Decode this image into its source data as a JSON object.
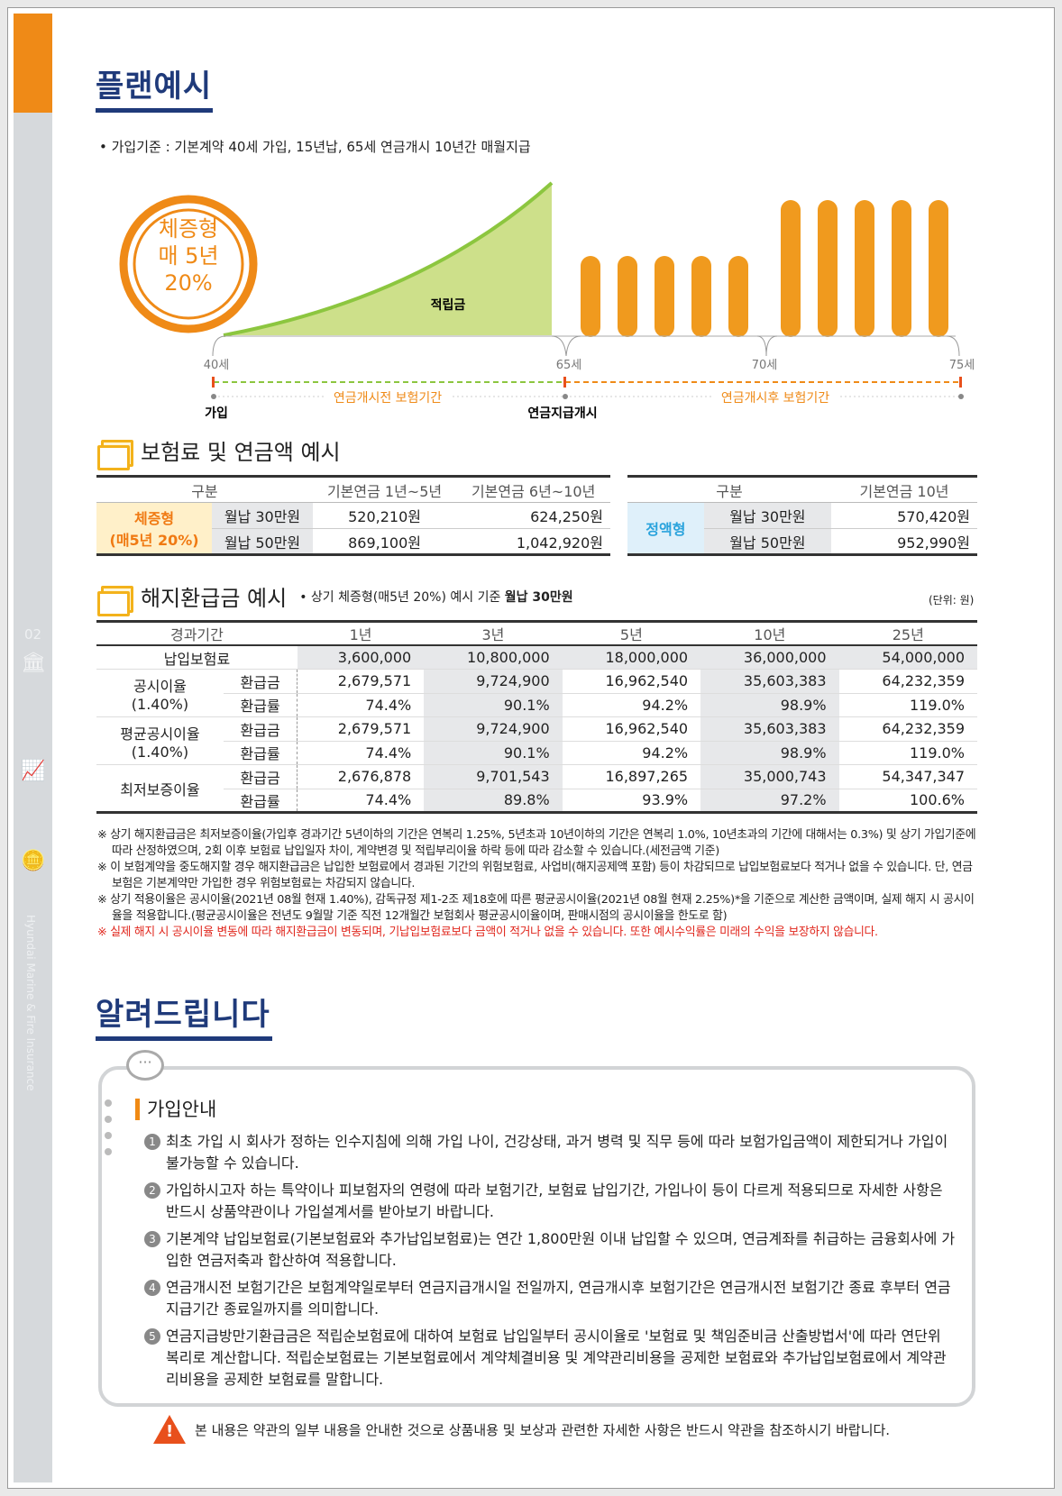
{
  "sidebar": {
    "page_number": "02",
    "vertical_text": "Hyundai Marine & Fire Insurance",
    "icons": [
      "bank-icon",
      "presentation-chart-icon",
      "coins-icon"
    ]
  },
  "plan": {
    "title": "플랜예시",
    "criteria": "• 가입기준 : 기본계약 40세 가입, 15년납, 65세 연금개시 10년간 매월지급",
    "badge": [
      "체증형",
      "매 5년",
      "20%"
    ],
    "accumulation_label": "적립금",
    "ages": [
      "40세",
      "65세",
      "70세",
      "75세"
    ],
    "period_before": "연금개시전 보험기간",
    "period_after": "연금개시후 보험기간",
    "milestones": [
      "가입",
      "연금지급개시"
    ],
    "colors": {
      "orange": "#ef8a17",
      "green": "#cde08a",
      "navy": "#1f3a7a"
    }
  },
  "premium": {
    "title": "보험료 및 연금액 예시",
    "left": {
      "headers": [
        "구분",
        "기본연금 1년~5년",
        "기본연금 6년~10년"
      ],
      "type": "체증형",
      "type2": "(매5년 20%)",
      "rows": [
        [
          "월납 30만원",
          "520,210원",
          "624,250원"
        ],
        [
          "월납 50만원",
          "869,100원",
          "1,042,920원"
        ]
      ]
    },
    "right": {
      "headers": [
        "구분",
        "기본연금 10년"
      ],
      "type": "정액형",
      "rows": [
        [
          "월납 30만원",
          "570,420원"
        ],
        [
          "월납 50만원",
          "952,990원"
        ]
      ]
    }
  },
  "refund": {
    "title": "해지환급금 예시",
    "subtitle": "• 상기 체증형(매5년 20%) 예시 기준 ",
    "subtitle_bold": "월납 30만원",
    "unit": "(단위: 원)",
    "headers": [
      "경과기간",
      "1년",
      "3년",
      "5년",
      "10년",
      "25년"
    ],
    "paid": {
      "label": "납입보험료",
      "values": [
        "3,600,000",
        "10,800,000",
        "18,000,000",
        "36,000,000",
        "54,000,000"
      ]
    },
    "groups": [
      {
        "label": "공시이율",
        "rate": "(1.40%)",
        "refund_label": "환급금",
        "refund": [
          "2,679,571",
          "9,724,900",
          "16,962,540",
          "35,603,383",
          "64,232,359"
        ],
        "ratio_label": "환급률",
        "ratio": [
          "74.4%",
          "90.1%",
          "94.2%",
          "98.9%",
          "119.0%"
        ]
      },
      {
        "label": "평균공시이율",
        "rate": "(1.40%)",
        "refund_label": "환급금",
        "refund": [
          "2,679,571",
          "9,724,900",
          "16,962,540",
          "35,603,383",
          "64,232,359"
        ],
        "ratio_label": "환급률",
        "ratio": [
          "74.4%",
          "90.1%",
          "94.2%",
          "98.9%",
          "119.0%"
        ]
      },
      {
        "label": "최저보증이율",
        "rate": "",
        "refund_label": "환급금",
        "refund": [
          "2,676,878",
          "9,701,543",
          "16,897,265",
          "35,000,743",
          "54,347,347"
        ],
        "ratio_label": "환급률",
        "ratio": [
          "74.4%",
          "89.8%",
          "93.9%",
          "97.2%",
          "100.6%"
        ]
      }
    ],
    "notes": [
      "※ 상기 해지환급금은 최저보증이율(가입후 경과기간 5년이하의 기간은 연복리 1.25%, 5년초과 10년이하의 기간은 연복리 1.0%, 10년초과의 기간에 대해서는 0.3%) 및 상기 가입기준에 따라 산정하였으며, 2회 이후 보험료 납입일자 차이, 계약변경 및 적립부리이율 하락 등에 따라 감소할 수 있습니다.(세전금액 기준)",
      "※ 이 보험계약을 중도해지할 경우 해지환급금은 납입한 보험료에서 경과된 기간의 위험보험료, 사업비(해지공제액 포함) 등이 차감되므로 납입보험료보다 적거나 없을 수 있습니다. 단, 연금보험은 기본계약만 가입한 경우 위험보험료는 차감되지 않습니다.",
      "※ 상기 적용이율은 공시이율(2021년 08월 현재 1.40%), 감독규정 제1-2조 제18호에 따른 평균공시이율(2021년 08월 현재 2.25%)*을 기준으로 계산한 금액이며, 실제 해지 시 공시이율을 적용합니다.(평균공시이율은 전년도 9월말 기준 직전 12개월간 보험회사 평균공시이율이며, 판매시점의 공시이율을 한도로 함)"
    ],
    "warning_note": "※ 실제 해지 시 공시이율 변동에 따라 해지환급금이 변동되며, 기납입보험료보다 금액이 적거나 없을 수 있습니다. 또한 예시수익률은 미래의 수익을 보장하지 않습니다."
  },
  "notice": {
    "title": "알려드립니다",
    "box_title": "가입안내",
    "items": [
      {
        "n": "1",
        "text": "최초 가입 시 회사가 정하는 인수지침에 의해 가입 나이, 건강상태, 과거 병력 및 직무 등에 따라 보험가입금액이 제한되거나 가입이 불가능할 수 있습니다."
      },
      {
        "n": "2",
        "text": "가입하시고자 하는 특약이나 피보험자의 연령에 따라 보험기간, 보험료 납입기간, 가입나이 등이 다르게 적용되므로 자세한 사항은 반드시 상품약관이나 가입설계서를 받아보기 바랍니다."
      },
      {
        "n": "3",
        "text": "기본계약 납입보험료(기본보험료와 추가납입보험료)는 연간 1,800만원 이내 납입할 수 있으며, 연금계좌를 취급하는 금융회사에 가입한 연금저축과 합산하여 적용합니다."
      },
      {
        "n": "4",
        "text": "연금개시전 보험기간은 보험계약일로부터 연금지급개시일 전일까지, 연금개시후 보험기간은 연금개시전 보험기간 종료 후부터 연금지급기간 종료일까지를 의미합니다."
      },
      {
        "n": "5",
        "text": "연금지급방만기환급금은 적립순보험료에 대하여 보험료 납입일부터 공시이율로 '보험료 및 책임준비금 산출방법서'에 따라 연단위 복리로 계산합니다. 적립순보험료는 기본보험료에서 계약체결비용 및 계약관리비용을 공제한 보험료와 추가납입보험료에서 계약관리비용을 공제한 보험료를 말합니다."
      }
    ],
    "footer": "본 내용은 약관의 일부 내용을 안내한 것으로 상품내용 및 보상과 관련한 자세한 사항은 반드시 약관을 참조하시기 바랍니다."
  }
}
